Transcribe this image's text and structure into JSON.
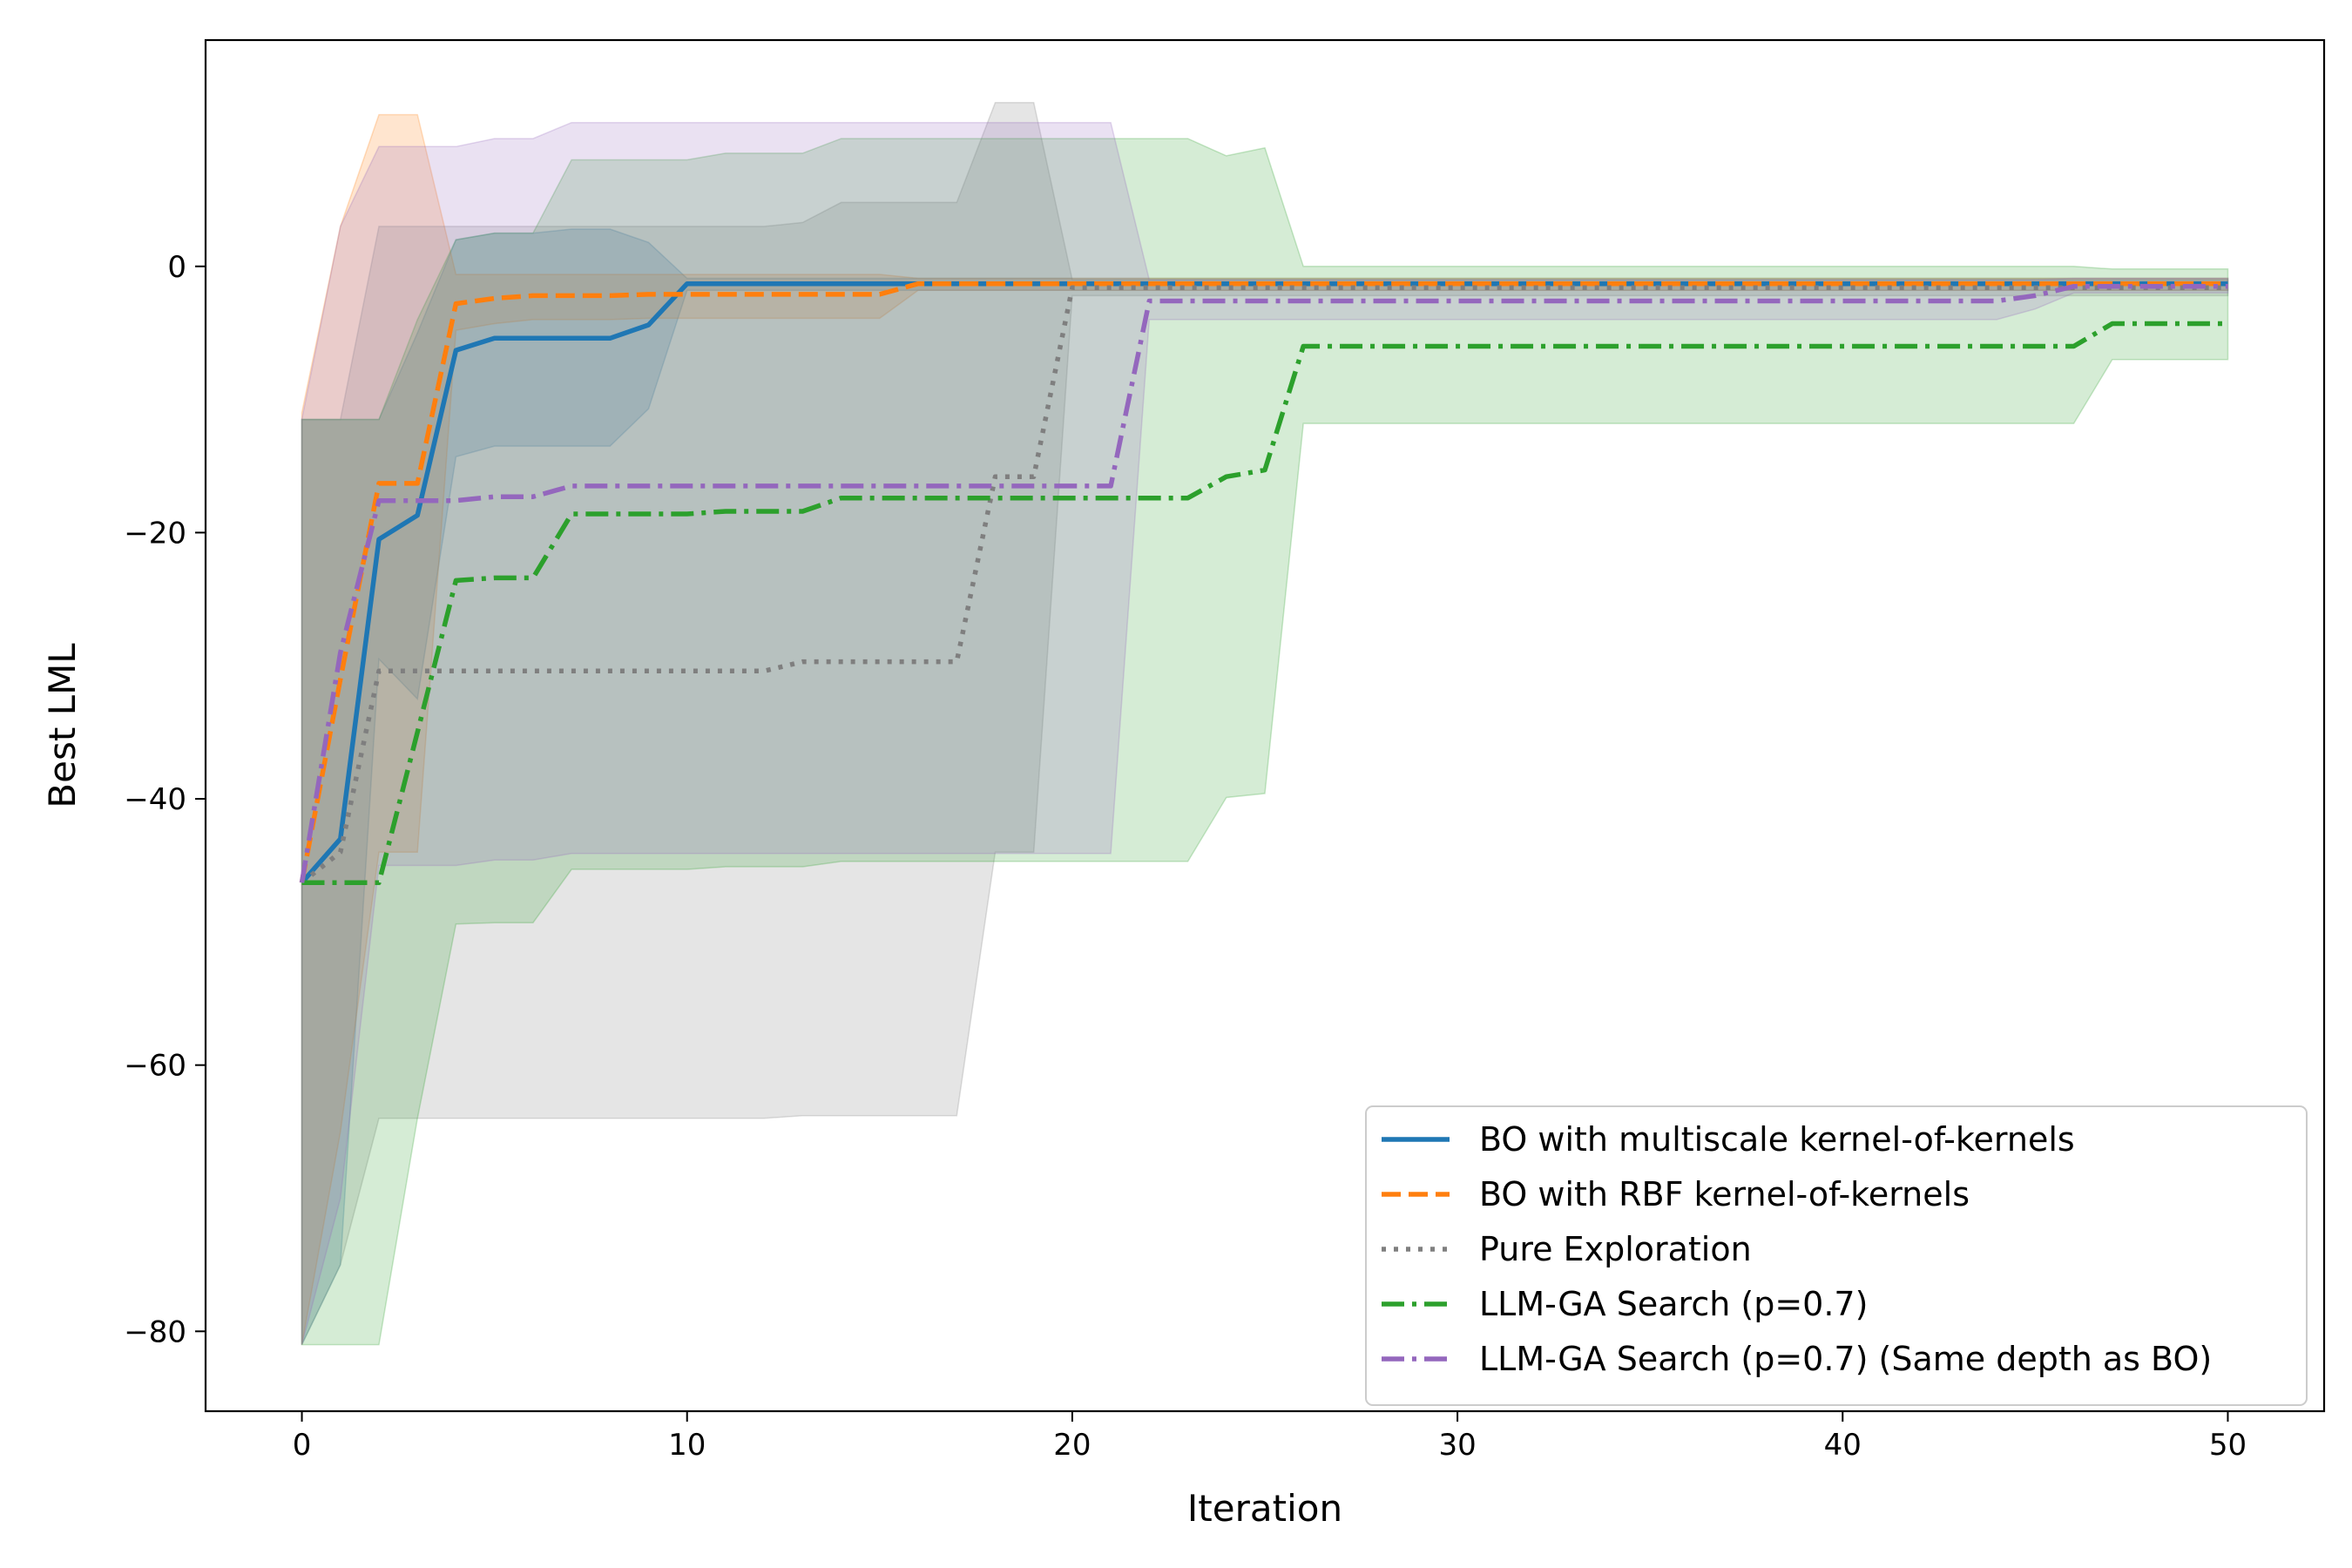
{
  "chart_data": {
    "type": "line",
    "title": "",
    "xlabel": "Iteration",
    "ylabel": "Best LML",
    "xlim": [
      -2.5,
      52.5
    ],
    "ylim": [
      -86,
      17
    ],
    "xticks": [
      0,
      10,
      20,
      30,
      40,
      50
    ],
    "yticks": [
      -80,
      -60,
      -40,
      -20,
      0
    ],
    "xtick_labels": [
      "0",
      "10",
      "20",
      "30",
      "40",
      "50"
    ],
    "ytick_labels": [
      "−80",
      "−60",
      "−40",
      "−20",
      "0"
    ],
    "grid": false,
    "legend_position": "lower-right",
    "series": [
      {
        "name": "BO with multiscale kernel-of-kernels",
        "color": "#1f77b4",
        "style": "solid",
        "x": [
          0,
          1,
          2,
          3,
          4,
          5,
          6,
          7,
          8,
          9,
          10,
          11,
          12,
          13,
          14,
          15,
          16,
          20,
          30,
          40,
          50
        ],
        "y": [
          -46.3,
          -43.0,
          -20.5,
          -18.7,
          -6.3,
          -5.4,
          -5.4,
          -5.4,
          -5.4,
          -4.4,
          -1.3,
          -1.3,
          -1.3,
          -1.3,
          -1.3,
          -1.3,
          -1.3,
          -1.3,
          -1.3,
          -1.3,
          -1.3
        ],
        "band_upper": [
          -11.5,
          -11.5,
          -11.5,
          -5.0,
          2.0,
          2.5,
          2.5,
          2.8,
          2.8,
          1.8,
          -0.9,
          -0.9,
          -0.9,
          -0.9,
          -0.9,
          -0.9,
          -0.9,
          -0.9,
          -0.9,
          -0.9,
          -0.9
        ],
        "band_lower": [
          -81.0,
          -75.0,
          -29.5,
          -32.5,
          -14.3,
          -13.5,
          -13.5,
          -13.5,
          -13.5,
          -10.7,
          -1.8,
          -1.8,
          -1.8,
          -1.8,
          -1.8,
          -1.8,
          -1.8,
          -1.8,
          -1.8,
          -1.8,
          -1.8
        ]
      },
      {
        "name": "BO with RBF kernel-of-kernels",
        "color": "#ff7f0e",
        "style": "dashed",
        "x": [
          0,
          1,
          2,
          3,
          4,
          5,
          6,
          7,
          8,
          9,
          10,
          12,
          14,
          15,
          16,
          20,
          30,
          40,
          50
        ],
        "y": [
          -46.3,
          -31.0,
          -16.3,
          -16.3,
          -2.8,
          -2.4,
          -2.2,
          -2.2,
          -2.2,
          -2.1,
          -2.1,
          -2.1,
          -2.1,
          -2.1,
          -1.3,
          -1.3,
          -1.3,
          -1.3,
          -1.3
        ],
        "band_upper": [
          -11.0,
          3.0,
          11.4,
          11.4,
          -0.6,
          -0.6,
          -0.6,
          -0.6,
          -0.6,
          -0.6,
          -0.6,
          -0.6,
          -0.6,
          -0.6,
          -0.9,
          -0.9,
          -0.9,
          -0.9,
          -0.9
        ],
        "band_lower": [
          -81.0,
          -65.0,
          -44.0,
          -44.0,
          -4.8,
          -4.3,
          -4.0,
          -4.0,
          -4.0,
          -3.9,
          -3.9,
          -3.9,
          -3.9,
          -3.9,
          -1.8,
          -1.8,
          -1.8,
          -1.8,
          -1.8
        ]
      },
      {
        "name": "Pure Exploration",
        "color": "#7f7f7f",
        "style": "dotted",
        "x": [
          0,
          1,
          2,
          3,
          4,
          6,
          8,
          10,
          12,
          13,
          14,
          15,
          16,
          17,
          18,
          19,
          20,
          25,
          30,
          40,
          50
        ],
        "y": [
          -46.3,
          -44.0,
          -30.4,
          -30.4,
          -30.4,
          -30.4,
          -30.4,
          -30.4,
          -30.4,
          -29.7,
          -29.7,
          -29.7,
          -29.7,
          -29.7,
          -15.8,
          -15.8,
          -1.6,
          -1.6,
          -1.6,
          -1.6,
          -1.6
        ],
        "band_upper": [
          -11.5,
          -11.5,
          3.0,
          3.0,
          3.0,
          3.0,
          3.0,
          3.0,
          3.0,
          3.3,
          4.8,
          4.8,
          4.8,
          4.8,
          12.3,
          12.3,
          -1.0,
          -1.0,
          -1.0,
          -1.0,
          -1.0
        ],
        "band_lower": [
          -81.0,
          -75.0,
          -64.0,
          -64.0,
          -64.0,
          -64.0,
          -64.0,
          -64.0,
          -64.0,
          -63.8,
          -63.8,
          -63.8,
          -63.8,
          -63.8,
          -44.0,
          -44.0,
          -2.2,
          -2.2,
          -2.2,
          -2.2,
          -2.2
        ]
      },
      {
        "name": "LLM-GA Search (p=0.7)",
        "color": "#2ca02c",
        "style": "dashdot",
        "x": [
          0,
          1,
          2,
          3,
          4,
          5,
          6,
          7,
          8,
          9,
          10,
          11,
          12,
          13,
          14,
          15,
          20,
          23,
          24,
          25,
          26,
          30,
          40,
          46,
          47,
          50
        ],
        "y": [
          -46.3,
          -46.3,
          -46.3,
          -35.0,
          -23.6,
          -23.4,
          -23.4,
          -18.6,
          -18.6,
          -18.6,
          -18.6,
          -18.4,
          -18.4,
          -18.4,
          -17.4,
          -17.4,
          -17.4,
          -17.4,
          -15.8,
          -15.3,
          -6.0,
          -6.0,
          -6.0,
          -6.0,
          -4.3,
          -4.3
        ],
        "band_upper": [
          -11.5,
          -11.5,
          -11.5,
          -4.0,
          2.0,
          2.5,
          2.5,
          8.0,
          8.0,
          8.0,
          8.0,
          8.5,
          8.5,
          8.5,
          9.6,
          9.6,
          9.6,
          9.6,
          8.3,
          8.9,
          0.0,
          0.0,
          0.0,
          0.0,
          -0.2,
          -0.2
        ],
        "band_lower": [
          -81.0,
          -81.0,
          -81.0,
          -64.0,
          -49.4,
          -49.3,
          -49.3,
          -45.3,
          -45.3,
          -45.3,
          -45.3,
          -45.1,
          -45.1,
          -45.1,
          -44.7,
          -44.7,
          -44.7,
          -44.7,
          -39.9,
          -39.6,
          -11.8,
          -11.8,
          -11.8,
          -11.8,
          -7.0,
          -7.0
        ]
      },
      {
        "name": "LLM-GA Search (p=0.7) (Same depth as BO)",
        "color": "#9467bd",
        "style": "dashdot",
        "x": [
          0,
          1,
          2,
          3,
          4,
          5,
          6,
          7,
          8,
          10,
          12,
          14,
          16,
          18,
          20,
          21,
          22,
          25,
          30,
          40,
          44,
          45,
          46,
          50
        ],
        "y": [
          -46.3,
          -29.0,
          -17.6,
          -17.6,
          -17.6,
          -17.3,
          -17.3,
          -16.5,
          -16.5,
          -16.5,
          -16.5,
          -16.5,
          -16.5,
          -16.5,
          -16.5,
          -16.5,
          -2.6,
          -2.6,
          -2.6,
          -2.6,
          -2.6,
          -2.2,
          -1.5,
          -1.5
        ],
        "band_upper": [
          -11.5,
          3.0,
          9.0,
          9.0,
          9.0,
          9.6,
          9.6,
          10.8,
          10.8,
          10.8,
          10.8,
          10.8,
          10.8,
          10.8,
          10.8,
          10.8,
          -1.0,
          -1.0,
          -1.0,
          -1.0,
          -1.0,
          -1.0,
          -0.9,
          -0.9
        ],
        "band_lower": [
          -81.0,
          -70.0,
          -45.0,
          -45.0,
          -45.0,
          -44.6,
          -44.6,
          -44.1,
          -44.1,
          -44.1,
          -44.1,
          -44.1,
          -44.1,
          -44.1,
          -44.1,
          -44.1,
          -4.0,
          -4.0,
          -4.0,
          -4.0,
          -4.0,
          -3.2,
          -2.0,
          -2.0
        ]
      }
    ]
  }
}
